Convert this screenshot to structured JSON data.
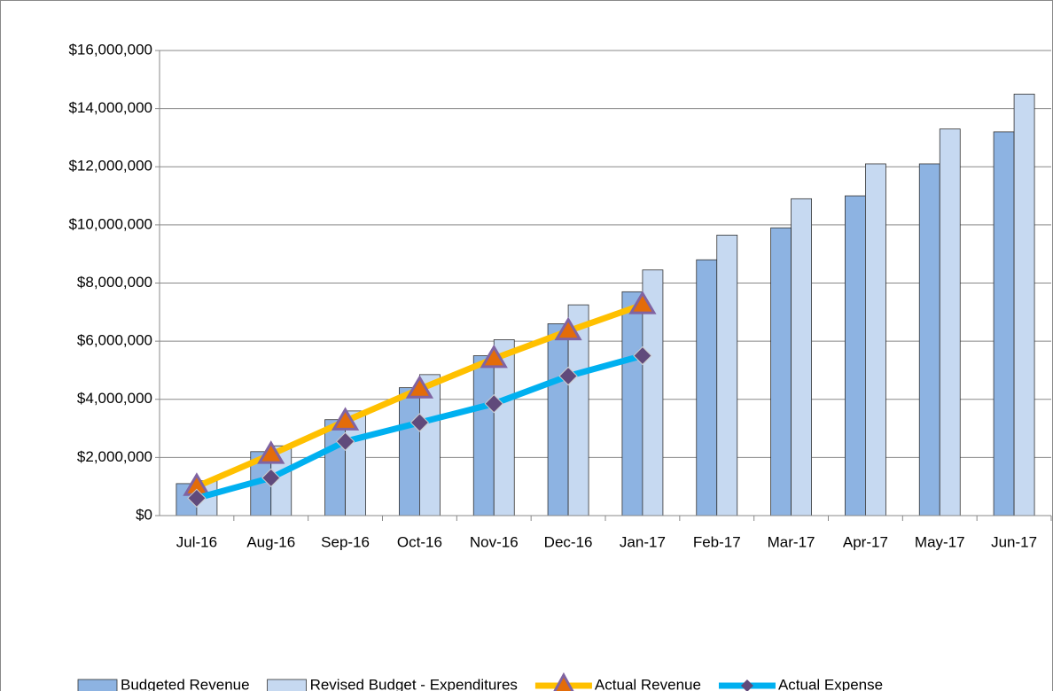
{
  "chart_data": {
    "type": "bar-line",
    "categories": [
      "Jul-16",
      "Aug-16",
      "Sep-16",
      "Oct-16",
      "Nov-16",
      "Dec-16",
      "Jan-17",
      "Feb-17",
      "Mar-17",
      "Apr-17",
      "May-17",
      "Jun-17"
    ],
    "series": [
      {
        "name": "Budgeted Revenue",
        "kind": "bar",
        "color": "#8db3e2",
        "values": [
          1100000,
          2200000,
          3300000,
          4400000,
          5500000,
          6600000,
          7700000,
          8800000,
          9900000,
          11000000,
          12100000,
          13200000
        ]
      },
      {
        "name": "Revised Budget - Expenditures",
        "kind": "bar",
        "color": "#c6d9f1",
        "values": [
          1200000,
          2400000,
          3600000,
          4850000,
          6050000,
          7250000,
          8450000,
          9650000,
          10900000,
          12100000,
          13300000,
          14500000
        ]
      },
      {
        "name": "Actual Revenue",
        "kind": "line",
        "color": "#ffc000",
        "marker": "triangle",
        "values": [
          1000000,
          2100000,
          3250000,
          4350000,
          5400000,
          6350000,
          7250000,
          null,
          null,
          null,
          null,
          null
        ]
      },
      {
        "name": "Actual Expense",
        "kind": "line",
        "color": "#00b0f0",
        "marker": "diamond",
        "values": [
          600000,
          1300000,
          2550000,
          3200000,
          3850000,
          4800000,
          5500000,
          null,
          null,
          null,
          null,
          null
        ]
      }
    ],
    "ylim": [
      0,
      16000000
    ],
    "yticks": [
      {
        "value": 0,
        "label": "$0"
      },
      {
        "value": 2000000,
        "label": "$2,000,000"
      },
      {
        "value": 4000000,
        "label": "$4,000,000"
      },
      {
        "value": 6000000,
        "label": "$6,000,000"
      },
      {
        "value": 8000000,
        "label": "$8,000,000"
      },
      {
        "value": 10000000,
        "label": "$10,000,000"
      },
      {
        "value": 12000000,
        "label": "$12,000,000"
      },
      {
        "value": 14000000,
        "label": "$14,000,000"
      },
      {
        "value": 16000000,
        "label": "$16,000,000"
      }
    ],
    "grid": true,
    "legend": "bottom"
  }
}
